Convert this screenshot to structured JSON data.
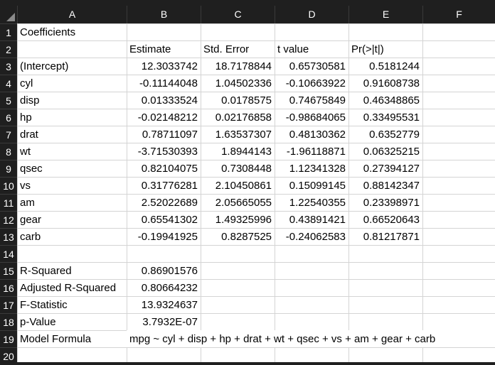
{
  "columns": [
    "A",
    "B",
    "C",
    "D",
    "E",
    "F"
  ],
  "rows": [
    "1",
    "2",
    "3",
    "4",
    "5",
    "6",
    "7",
    "8",
    "9",
    "10",
    "11",
    "12",
    "13",
    "14",
    "15",
    "16",
    "17",
    "18",
    "19",
    "20"
  ],
  "sheet": {
    "r1": {
      "a": "Coefficients"
    },
    "r2": {
      "b": "Estimate",
      "c": "Std. Error",
      "d": "t value",
      "e": "Pr(>|t|)"
    },
    "coef": [
      {
        "name": "(Intercept)",
        "est": "12.3033742",
        "se": "18.7178844",
        "t": "0.65730581",
        "p": "0.5181244"
      },
      {
        "name": "cyl",
        "est": "-0.11144048",
        "se": "1.04502336",
        "t": "-0.10663922",
        "p": "0.91608738"
      },
      {
        "name": "disp",
        "est": "0.01333524",
        "se": "0.0178575",
        "t": "0.74675849",
        "p": "0.46348865"
      },
      {
        "name": "hp",
        "est": "-0.02148212",
        "se": "0.02176858",
        "t": "-0.98684065",
        "p": "0.33495531"
      },
      {
        "name": "drat",
        "est": "0.78711097",
        "se": "1.63537307",
        "t": "0.48130362",
        "p": "0.6352779"
      },
      {
        "name": "wt",
        "est": "-3.71530393",
        "se": "1.8944143",
        "t": "-1.96118871",
        "p": "0.06325215"
      },
      {
        "name": "qsec",
        "est": "0.82104075",
        "se": "0.7308448",
        "t": "1.12341328",
        "p": "0.27394127"
      },
      {
        "name": "vs",
        "est": "0.31776281",
        "se": "2.10450861",
        "t": "0.15099145",
        "p": "0.88142347"
      },
      {
        "name": "am",
        "est": "2.52022689",
        "se": "2.05665055",
        "t": "1.22540355",
        "p": "0.23398971"
      },
      {
        "name": "gear",
        "est": "0.65541302",
        "se": "1.49325996",
        "t": "0.43891421",
        "p": "0.66520643"
      },
      {
        "name": "carb",
        "est": "-0.19941925",
        "se": "0.8287525",
        "t": "-0.24062583",
        "p": "0.81217871"
      }
    ],
    "stats": [
      {
        "label": "R-Squared",
        "value": "0.86901576"
      },
      {
        "label": "Adjusted R-Squared",
        "value": "0.80664232"
      },
      {
        "label": "F-Statistic",
        "value": "13.9324637"
      },
      {
        "label": "p-Value",
        "value": "3.7932E-07"
      }
    ],
    "formula": {
      "label": "Model Formula",
      "value": "mpg ~ cyl + disp + hp + drat + wt + qsec + vs + am + gear + carb"
    }
  }
}
